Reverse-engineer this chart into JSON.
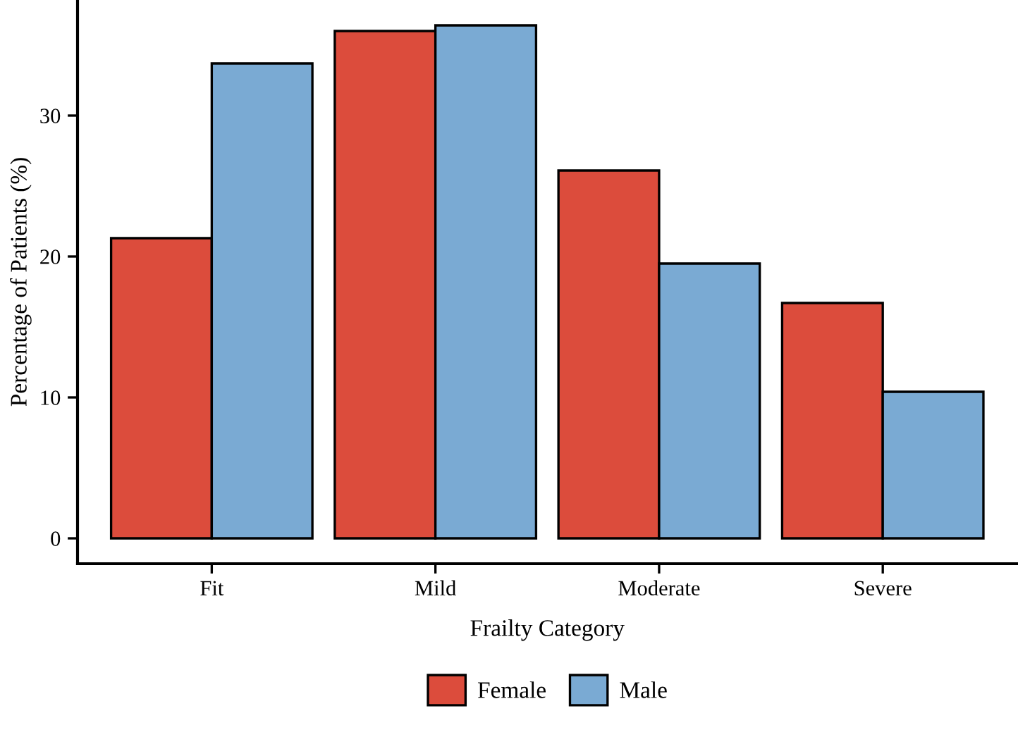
{
  "chart_data": {
    "type": "bar",
    "xlabel": "Frailty Category",
    "ylabel": "Percentage of Patients (%)",
    "categories": [
      "Fit",
      "Mild",
      "Moderate",
      "Severe"
    ],
    "series": [
      {
        "name": "Female",
        "color": "#dc4c3c",
        "values": [
          21.3,
          36.0,
          26.1,
          16.7
        ]
      },
      {
        "name": "Male",
        "color": "#7aaad3",
        "values": [
          33.7,
          36.4,
          19.5,
          10.4
        ]
      }
    ],
    "ylim": [
      -1.8,
      38.2
    ],
    "yticks": [
      0,
      10,
      20,
      30
    ],
    "grid": false,
    "legend": "bottom"
  }
}
